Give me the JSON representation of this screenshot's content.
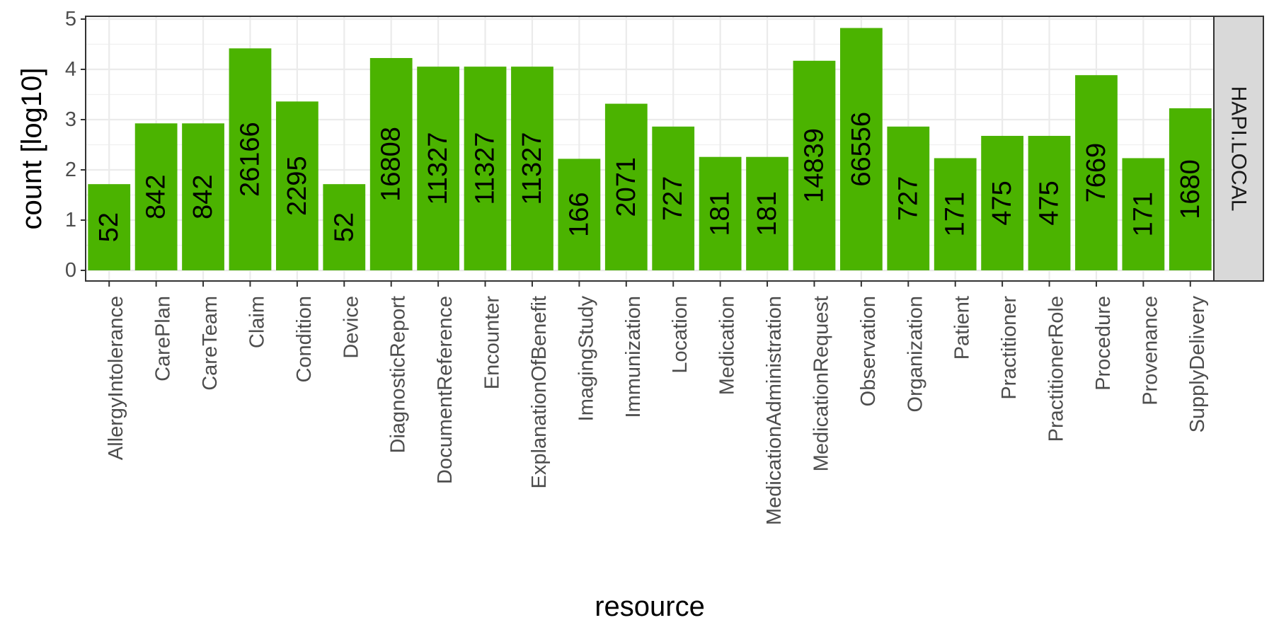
{
  "chart_data": {
    "type": "bar",
    "facet_label": "HAPI.LOCAL",
    "xlabel": "resource",
    "ylabel": "count [log10]",
    "ylim": [
      0,
      5
    ],
    "yticks": [
      0,
      1,
      2,
      3,
      4,
      5
    ],
    "y_scale": "log10",
    "grid": true,
    "bar_color": "#4bb300",
    "categories": [
      "AllergyIntolerance",
      "CarePlan",
      "CareTeam",
      "Claim",
      "Condition",
      "Device",
      "DiagnosticReport",
      "DocumentReference",
      "Encounter",
      "ExplanationOfBenefit",
      "ImagingStudy",
      "Immunization",
      "Location",
      "Medication",
      "MedicationAdministration",
      "MedicationRequest",
      "Observation",
      "Organization",
      "Patient",
      "Practitioner",
      "PractitionerRole",
      "Procedure",
      "Provenance",
      "SupplyDelivery"
    ],
    "values": [
      52,
      842,
      842,
      26166,
      2295,
      52,
      16808,
      11327,
      11327,
      11327,
      166,
      2071,
      727,
      181,
      181,
      14839,
      66556,
      727,
      171,
      475,
      475,
      7669,
      171,
      1680
    ],
    "value_labels": [
      "52",
      "842",
      "842",
      "26166",
      "2295",
      "52",
      "16808",
      "11327",
      "11327",
      "11327",
      "166",
      "2071",
      "727",
      "181",
      "181",
      "14839",
      "66556",
      "727",
      "171",
      "475",
      "475",
      "7669",
      "171",
      "1680"
    ]
  }
}
